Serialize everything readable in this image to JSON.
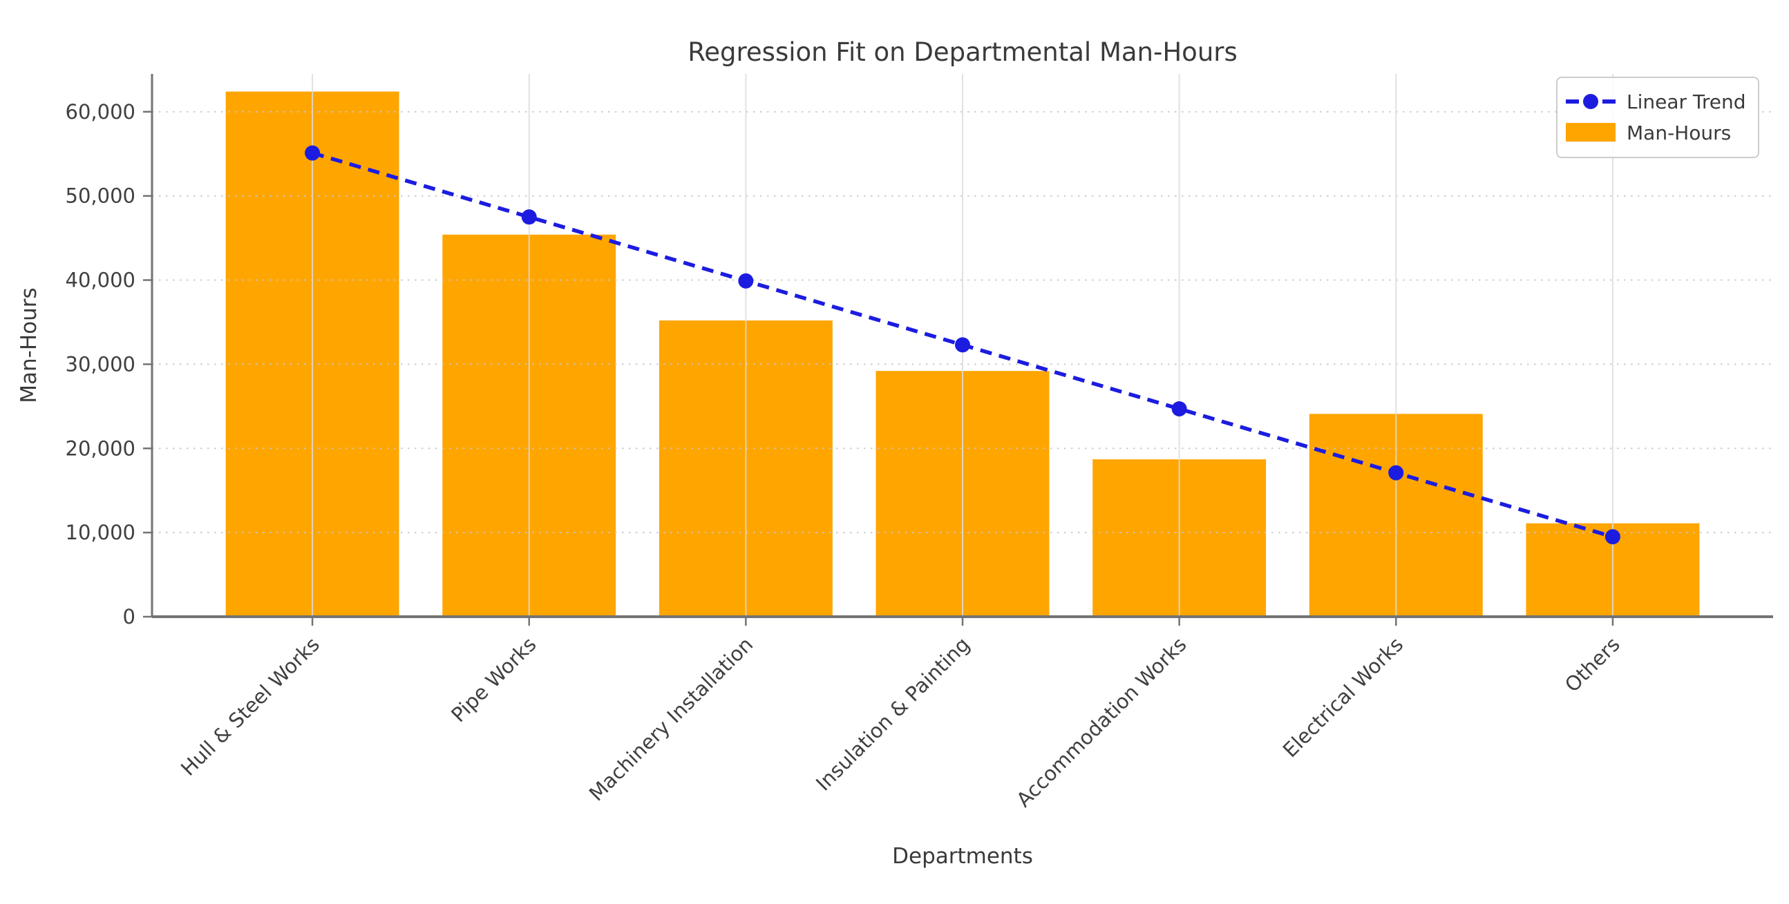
{
  "chart_data": {
    "type": "bar",
    "title": "Regression Fit on Departmental Man-Hours",
    "xlabel": "Departments",
    "ylabel": "Man-Hours",
    "categories": [
      "Hull & Steel Works",
      "Pipe Works",
      "Machinery Installation",
      "Insulation & Painting",
      "Accommodation Works",
      "Electrical Works",
      "Others"
    ],
    "series": [
      {
        "name": "Man-Hours",
        "type": "bar",
        "color": "#ffa500",
        "values": [
          62400,
          45400,
          35200,
          29200,
          18700,
          24100,
          11100
        ]
      },
      {
        "name": "Linear Trend",
        "type": "line",
        "style": "dashed",
        "marker": "circle",
        "color": "#1c1ce0",
        "values": [
          55100,
          47500,
          39900,
          32300,
          24700,
          17100,
          9500
        ]
      }
    ],
    "ylim": [
      0,
      64500
    ],
    "yticks": [
      0,
      10000,
      20000,
      30000,
      40000,
      50000,
      60000
    ],
    "ytick_labels": [
      "0",
      "10,000",
      "20,000",
      "30,000",
      "40,000",
      "50,000",
      "60,000"
    ],
    "grid": true,
    "legend_position": "upper right",
    "legend_entries": [
      "Linear Trend",
      "Man-Hours"
    ],
    "colors": {
      "bar": "#ffa500",
      "trend": "#1c1ce0",
      "spine": "#737373",
      "grid_h": "#c8c8c8",
      "grid_v": "#dcdcdc",
      "text": "#3a3a3a"
    }
  }
}
